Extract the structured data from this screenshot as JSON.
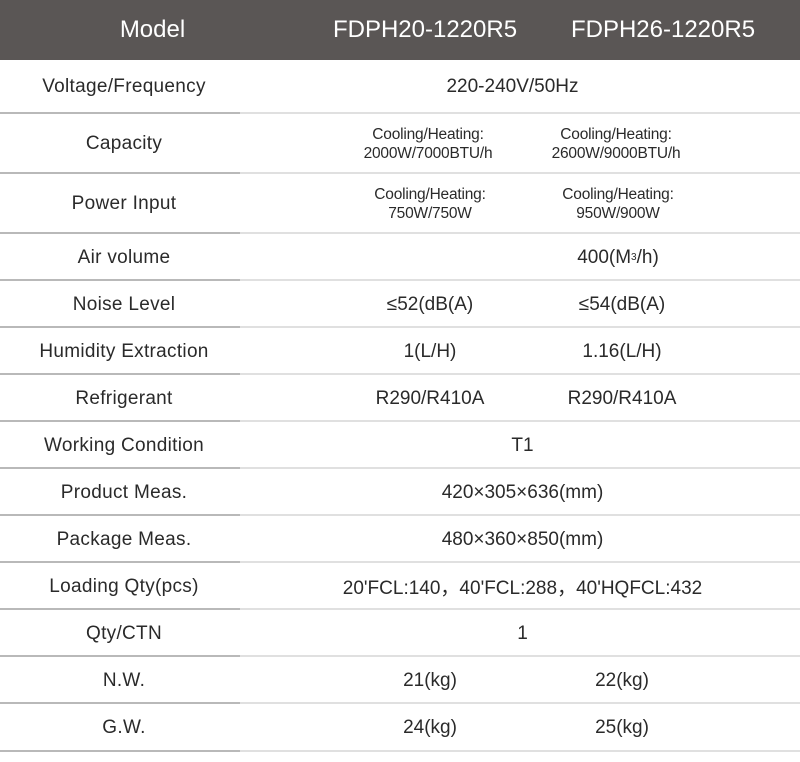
{
  "header": {
    "model_label": "Model",
    "model1": "FDPH20-1220R5",
    "model2": "FDPH26-1220R5"
  },
  "rows": {
    "voltage": {
      "label": "Voltage/Frequency",
      "value": "220-240V/50Hz"
    },
    "capacity": {
      "label": "Capacity",
      "m1_line1": "Cooling/Heating:",
      "m1_line2": "2000W/7000BTU/h",
      "m2_line1": "Cooling/Heating:",
      "m2_line2": "2600W/9000BTU/h"
    },
    "power": {
      "label": "Power Input",
      "m1_line1": "Cooling/Heating:",
      "m1_line2": "750W/750W",
      "m2_line1": "Cooling/Heating:",
      "m2_line2": "950W/900W"
    },
    "air": {
      "label": "Air volume",
      "value_prefix": "400(M",
      "value_sup": "3",
      "value_suffix": "/h)"
    },
    "noise": {
      "label": "Noise Level",
      "m1": "≤52(dB(A)",
      "m2": "≤54(dB(A)"
    },
    "humidity": {
      "label": "Humidity Extraction",
      "m1": "1(L/H)",
      "m2": "1.16(L/H)"
    },
    "refrigerant": {
      "label": "Refrigerant",
      "m1": "R290/R410A",
      "m2": "R290/R410A"
    },
    "working": {
      "label": "Working Condition",
      "value": "T1"
    },
    "product_meas": {
      "label": "Product Meas.",
      "value": "420×305×636(mm)"
    },
    "package_meas": {
      "label": "Package Meas.",
      "value": "480×360×850(mm)"
    },
    "loading": {
      "label": "Loading Qty(pcs)",
      "value": "20'FCL:140，40'FCL:288，40'HQFCL:432"
    },
    "qty_ctn": {
      "label": "Qty/CTN",
      "value": "1"
    },
    "nw": {
      "label": "N.W.",
      "m1": "21(kg)",
      "m2": "22(kg)"
    },
    "gw": {
      "label": "G.W.",
      "m1": "24(kg)",
      "m2": "25(kg)"
    }
  }
}
